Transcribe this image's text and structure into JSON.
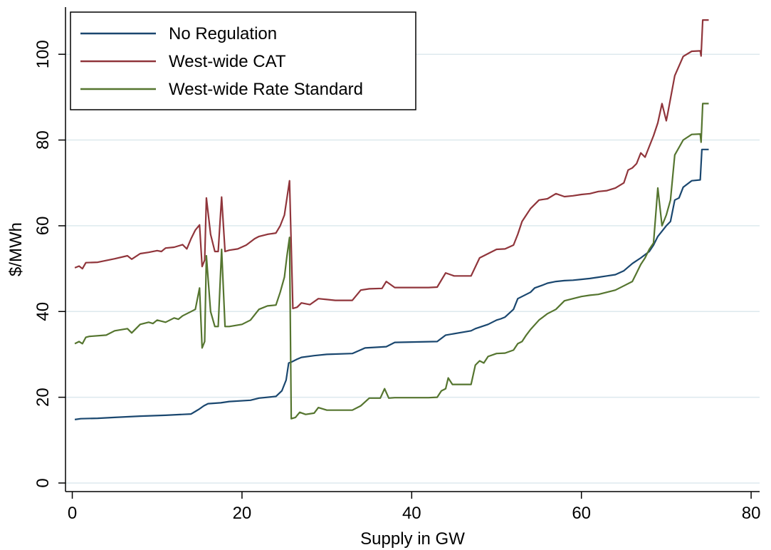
{
  "chart_data": {
    "type": "line",
    "xlabel": "Supply in GW",
    "ylabel": "$/MWh",
    "xlim": [
      -0.8,
      81
    ],
    "ylim": [
      -2,
      111
    ],
    "xticks": [
      0,
      20,
      40,
      60,
      80
    ],
    "yticks": [
      0,
      20,
      40,
      60,
      80,
      100
    ],
    "grid": "horizontal",
    "legend_position": "top-left",
    "series": [
      {
        "name": "No Regulation",
        "color": "#1a476f",
        "x": [
          0.3,
          1,
          3,
          5,
          8,
          11,
          14,
          14.5,
          15,
          15.5,
          16,
          17.5,
          18.5,
          21,
          22,
          24,
          24.7,
          25.2,
          25.5,
          25.8,
          26.5,
          27,
          28.5,
          30,
          33,
          34.5,
          37,
          38,
          43,
          44,
          47,
          47.5,
          49,
          50,
          50.5,
          51,
          52,
          52.5,
          53,
          54,
          54.5,
          55.5,
          56,
          57,
          58,
          59,
          60,
          61,
          62,
          63,
          64,
          65,
          66,
          67,
          68,
          68.5,
          69,
          70,
          70.5,
          71,
          71.5,
          72,
          73,
          74,
          74.2,
          75
        ],
        "y": [
          14.8,
          15,
          15.1,
          15.3,
          15.6,
          15.8,
          16.1,
          16.7,
          17.3,
          18.0,
          18.5,
          18.7,
          19.0,
          19.3,
          19.8,
          20.2,
          21.5,
          24.0,
          28.0,
          28.2,
          28.9,
          29.3,
          29.7,
          30.0,
          30.2,
          31.5,
          31.8,
          32.8,
          33.0,
          34.5,
          35.5,
          36.0,
          37.0,
          38.0,
          38.3,
          38.7,
          40.5,
          43.0,
          43.5,
          44.5,
          45.5,
          46.2,
          46.6,
          47.0,
          47.2,
          47.3,
          47.5,
          47.7,
          48.0,
          48.3,
          48.6,
          49.5,
          51.2,
          52.5,
          54.0,
          55.5,
          57.5,
          60.0,
          61.0,
          66.0,
          66.5,
          69.0,
          70.5,
          70.7,
          77.8,
          77.8
        ]
      },
      {
        "name": "West-wide CAT",
        "color": "#90353b",
        "x": [
          0.3,
          0.8,
          1.2,
          1.6,
          3,
          5,
          6.5,
          7,
          8,
          9,
          10,
          10.5,
          11,
          12,
          13,
          13.5,
          14,
          14.5,
          15,
          15.3,
          15.6,
          15.8,
          16.3,
          16.8,
          17.2,
          17.6,
          18,
          18.5,
          19.5,
          20.5,
          21.5,
          22,
          23,
          24,
          24.5,
          25,
          25.3,
          25.6,
          26,
          26.5,
          27,
          28,
          29,
          30,
          31,
          33,
          34,
          35,
          36.5,
          37,
          38,
          40,
          42,
          43,
          44,
          45,
          47,
          48,
          49,
          50,
          51,
          52,
          52.5,
          53,
          53.5,
          54,
          55,
          56,
          57,
          58,
          59,
          60,
          61,
          62,
          63,
          64,
          65,
          65.5,
          66,
          66.5,
          67,
          67.5,
          68,
          68.5,
          69,
          69.5,
          70,
          70.2,
          71,
          72,
          73,
          74,
          74.1,
          74.3,
          75
        ],
        "y": [
          50.2,
          50.6,
          50.0,
          51.4,
          51.5,
          52.3,
          53.0,
          52.2,
          53.5,
          53.8,
          54.2,
          54.0,
          54.8,
          55.0,
          55.6,
          54.6,
          57.0,
          59.0,
          60.2,
          50.5,
          52.0,
          66.5,
          58.0,
          54.0,
          54.0,
          66.7,
          54.0,
          54.3,
          54.6,
          55.5,
          57.0,
          57.5,
          58.0,
          58.3,
          60.0,
          62.5,
          66.5,
          70.5,
          40.7,
          41.0,
          42.0,
          41.6,
          43.0,
          42.8,
          42.6,
          42.6,
          45.0,
          45.3,
          45.4,
          47.0,
          45.6,
          45.6,
          45.6,
          45.7,
          49.0,
          48.3,
          48.3,
          52.5,
          53.5,
          54.5,
          54.6,
          55.5,
          58.0,
          61.0,
          62.5,
          64.0,
          66.0,
          66.3,
          67.5,
          66.8,
          67.0,
          67.3,
          67.5,
          68.0,
          68.2,
          68.8,
          70.0,
          73.0,
          73.5,
          74.5,
          77.0,
          76.0,
          78.5,
          81.0,
          84.0,
          88.5,
          84.5,
          86.5,
          95.0,
          99.5,
          100.7,
          100.8,
          99.6,
          108.0,
          108.0
        ]
      },
      {
        "name": "West-wide Rate Standard",
        "color": "#55752f",
        "x": [
          0.3,
          0.8,
          1.2,
          1.6,
          2,
          4,
          5,
          6.5,
          7,
          8,
          9,
          9.5,
          10,
          11,
          12,
          12.5,
          13,
          14,
          14.5,
          15,
          15.3,
          15.6,
          15.8,
          16.3,
          16.8,
          17.2,
          17.6,
          18,
          18.5,
          20,
          21,
          22,
          23,
          24,
          24.5,
          25,
          25.3,
          25.6,
          25.8,
          26.3,
          26.8,
          27.5,
          28.5,
          29,
          30,
          32,
          33,
          34,
          35,
          36.3,
          36.8,
          37.3,
          38,
          40,
          42,
          43,
          43.5,
          44,
          44.3,
          44.8,
          46,
          47,
          47.5,
          48,
          48.5,
          49,
          50,
          51,
          52,
          52.5,
          53,
          53.5,
          54,
          55,
          56,
          57,
          58,
          59,
          60,
          61,
          62,
          63,
          64,
          65,
          66,
          66.5,
          67,
          67.5,
          68,
          68.5,
          69,
          69.5,
          70,
          70.5,
          71,
          72,
          73,
          74,
          74.1,
          74.3,
          75
        ],
        "y": [
          32.5,
          33.0,
          32.5,
          34.0,
          34.2,
          34.5,
          35.5,
          36.0,
          35.0,
          37.0,
          37.5,
          37.2,
          38.0,
          37.5,
          38.5,
          38.2,
          39.0,
          40.0,
          40.5,
          45.5,
          31.5,
          33.0,
          53.0,
          40.0,
          36.5,
          36.5,
          54.5,
          36.5,
          36.5,
          37.0,
          38.0,
          40.5,
          41.3,
          41.5,
          44.5,
          48.0,
          53.0,
          57.3,
          15.0,
          15.3,
          16.5,
          16.0,
          16.3,
          17.6,
          17.0,
          17.0,
          17.0,
          18.0,
          19.8,
          19.8,
          22.0,
          19.8,
          19.9,
          19.9,
          19.9,
          20.0,
          21.5,
          22.0,
          24.5,
          23.0,
          23.0,
          23.0,
          27.5,
          28.5,
          28.0,
          29.5,
          30.2,
          30.3,
          31.0,
          32.5,
          33.0,
          34.5,
          35.8,
          38.0,
          39.5,
          40.5,
          42.5,
          43.0,
          43.5,
          43.8,
          44.0,
          44.5,
          45.0,
          46.0,
          47.0,
          49.0,
          51.0,
          52.5,
          54.5,
          56.0,
          68.8,
          60.0,
          62.5,
          66.0,
          76.5,
          80.0,
          81.3,
          81.4,
          79.5,
          88.5,
          88.5
        ]
      }
    ]
  }
}
